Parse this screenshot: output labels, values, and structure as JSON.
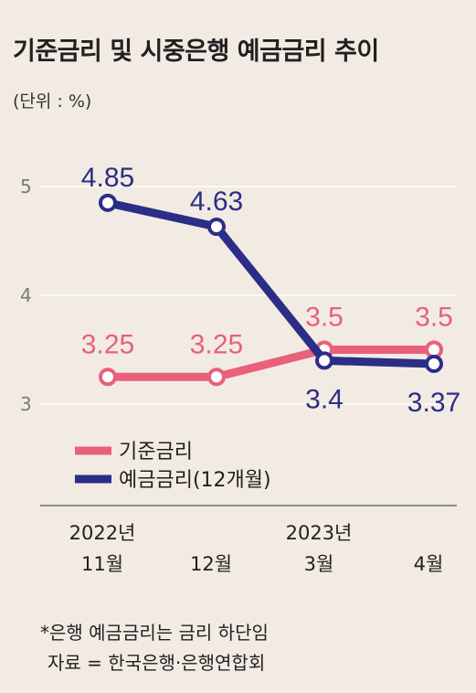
{
  "header": {
    "title": "기준금리 및 시중은행 예금금리 추이",
    "unit": "(단위 : %)"
  },
  "colors": {
    "background": "#f2ebe3",
    "base_rate": "#e8607a",
    "deposit_rate": "#2b2e87",
    "grid": "#ffffff",
    "axis_text": "#7a7a7a"
  },
  "chart_data": {
    "type": "line",
    "categories": [
      "2022년 11월",
      "12월",
      "2023년 3월",
      "4월"
    ],
    "x_tick_labels": [
      {
        "top": "2022년",
        "bottom": "11월"
      },
      {
        "top": "",
        "bottom": "12월"
      },
      {
        "top": "2023년",
        "bottom": "3월"
      },
      {
        "top": "",
        "bottom": "4월"
      }
    ],
    "y_ticks": [
      "5",
      "4",
      "3"
    ],
    "ylim": [
      2.6,
      5.6
    ],
    "grid": true,
    "legend_position": "bottom-left",
    "series": [
      {
        "name": "기준금리",
        "values": [
          3.25,
          3.25,
          3.5,
          3.5
        ],
        "labels": [
          "3.25",
          "3.25",
          "3.5",
          "3.5"
        ],
        "label_position": "above"
      },
      {
        "name": "예금금리(12개월)",
        "values": [
          4.85,
          4.63,
          3.4,
          3.37
        ],
        "labels": [
          "4.85",
          "4.63",
          "3.4",
          "3.37"
        ],
        "label_position": "mixed"
      }
    ]
  },
  "footnote": {
    "line1": "*은행 예금금리는 금리 하단임",
    "line2": "자료 = 한국은행·은행연합회"
  }
}
